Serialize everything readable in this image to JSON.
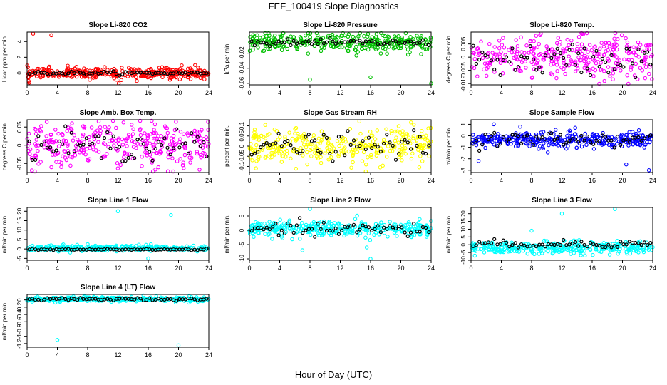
{
  "page": {
    "title": "FEF_100419  Slope Diagnostics",
    "xlabel": "Hour of Day (UTC)"
  },
  "chart_data": [
    {
      "type": "scatter",
      "title": "Slope Li-820 CO2",
      "ylabel": "Licor ppm per min.",
      "color": "#ff0000",
      "xlim": [
        0,
        24
      ],
      "xticks": [
        0,
        4,
        8,
        12,
        16,
        20,
        24
      ],
      "ylim": [
        -1.5,
        5.2
      ],
      "yticks": [
        0,
        2,
        4
      ],
      "center": 0.0,
      "spread": 0.35,
      "hourly_center": 0.0,
      "hourly_spread": 0.1,
      "outliers": [
        [
          0.8,
          5.0
        ],
        [
          3.2,
          4.8
        ],
        [
          12.1,
          -1.3
        ],
        [
          0.2,
          -1.0
        ]
      ]
    },
    {
      "type": "scatter",
      "title": "Slope Li-820 Pressure",
      "ylabel": "kPa per min.",
      "color": "#00c000",
      "xlim": [
        0,
        24
      ],
      "xticks": [
        0,
        4,
        8,
        12,
        16,
        20,
        24
      ],
      "ylim": [
        -0.062,
        0.008
      ],
      "yticks": [
        -0.06,
        -0.04,
        -0.02
      ],
      "center": -0.006,
      "spread": 0.006,
      "hourly_center": -0.006,
      "hourly_spread": 0.002,
      "outliers": [
        [
          8,
          -0.055
        ],
        [
          16,
          -0.052
        ],
        [
          24,
          -0.06
        ],
        [
          0.5,
          0.004
        ]
      ]
    },
    {
      "type": "scatter",
      "title": "Slope Li-820 Temp.",
      "ylabel": "degrees C per min.",
      "color": "#ff00ff",
      "xlim": [
        0,
        24
      ],
      "xticks": [
        0,
        4,
        8,
        12,
        16,
        20,
        24
      ],
      "ylim": [
        -0.0105,
        0.0095
      ],
      "yticks": [
        -0.01,
        -0.005,
        0.0,
        0.005
      ],
      "center": 0.0,
      "spread": 0.004,
      "hourly_center": -0.001,
      "hourly_spread": 0.003,
      "outliers": []
    },
    {
      "type": "scatter",
      "title": "Slope Amb. Box Temp.",
      "ylabel": "degrees C per min.",
      "color": "#ff00ff",
      "xlim": [
        0,
        24
      ],
      "xticks": [
        0,
        4,
        8,
        12,
        16,
        20,
        24
      ],
      "ylim": [
        -0.075,
        0.07
      ],
      "yticks": [
        -0.05,
        0.0,
        0.05
      ],
      "center": 0.0,
      "spread": 0.03,
      "hourly_center": 0.0,
      "hourly_spread": 0.02,
      "outliers": []
    },
    {
      "type": "scatter",
      "title": "Slope Gas Stream RH",
      "ylabel": "percent per min.",
      "color": "#ffff00",
      "xlim": [
        0,
        24
      ],
      "xticks": [
        0,
        4,
        8,
        12,
        16,
        20,
        24
      ],
      "ylim": [
        -0.13,
        0.13
      ],
      "yticks": [
        -0.1,
        -0.05,
        0.0,
        0.05,
        0.1
      ],
      "center": 0.0,
      "spread": 0.045,
      "hourly_center": 0.0,
      "hourly_spread": 0.03,
      "outliers": []
    },
    {
      "type": "scatter",
      "title": "Slope Sample Flow",
      "ylabel": "ml/min per min.",
      "color": "#0000ff",
      "xlim": [
        0,
        24
      ],
      "xticks": [
        0,
        4,
        8,
        12,
        16,
        20,
        24
      ],
      "ylim": [
        -3.2,
        1.4
      ],
      "yticks": [
        -3,
        -2,
        -1,
        0,
        1
      ],
      "center": -0.4,
      "spread": 0.35,
      "hourly_center": -0.3,
      "hourly_spread": 0.3,
      "outliers": [
        [
          3,
          1.0
        ],
        [
          23.5,
          -3.0
        ],
        [
          20.5,
          -2.5
        ],
        [
          1,
          -2.2
        ],
        [
          6.5,
          0.8
        ]
      ]
    },
    {
      "type": "scatter",
      "title": "Slope Line 1 Flow",
      "ylabel": "ml/min per min.",
      "color": "#00ffff",
      "xlim": [
        0,
        24
      ],
      "xticks": [
        0,
        4,
        8,
        12,
        16,
        20,
        24
      ],
      "ylim": [
        -6,
        22
      ],
      "yticks": [
        -5,
        0,
        5,
        10,
        15,
        20
      ],
      "center": 0.5,
      "spread": 0.7,
      "hourly_center": -0.3,
      "hourly_spread": 0.2,
      "outliers": [
        [
          12,
          20
        ],
        [
          19,
          18
        ],
        [
          16,
          -5
        ],
        [
          8,
          2.5
        ]
      ]
    },
    {
      "type": "scatter",
      "title": "Slope Line 2 Flow",
      "ylabel": "ml/min per min.",
      "color": "#00ffff",
      "xlim": [
        0,
        24
      ],
      "xticks": [
        0,
        4,
        8,
        12,
        16,
        20,
        24
      ],
      "ylim": [
        -10.5,
        8
      ],
      "yticks": [
        -10,
        -5,
        0,
        5
      ],
      "center": 0.5,
      "spread": 1.3,
      "hourly_center": 0.3,
      "hourly_spread": 1.2,
      "outliers": [
        [
          8,
          7.5
        ],
        [
          16,
          -10
        ],
        [
          7,
          -7
        ],
        [
          3,
          -3
        ],
        [
          15.5,
          -6
        ]
      ]
    },
    {
      "type": "scatter",
      "title": "Slope Line 3 Flow",
      "ylabel": "ml/min per min.",
      "color": "#00ffff",
      "xlim": [
        0,
        24
      ],
      "xticks": [
        0,
        4,
        8,
        12,
        16,
        20,
        24
      ],
      "ylim": [
        -10,
        24
      ],
      "yticks": [
        -10,
        -5,
        0,
        5,
        10,
        15,
        20
      ],
      "center": -2,
      "spread": 2.0,
      "hourly_center": 0.5,
      "hourly_spread": 1.2,
      "outliers": [
        [
          12,
          20
        ],
        [
          19,
          23
        ],
        [
          0.5,
          -7
        ],
        [
          8,
          9
        ]
      ]
    },
    {
      "type": "scatter",
      "title": "Slope Line 4 (LT) Flow",
      "ylabel": "ml/min per min.",
      "color": "#00ffff",
      "xlim": [
        0,
        24
      ],
      "xticks": [
        0,
        4,
        8,
        12,
        16,
        20,
        24
      ],
      "ylim": [
        -1.3,
        0.15
      ],
      "yticks": [
        -1.2,
        -1.0,
        -0.8,
        -0.6,
        -0.4,
        -0.2,
        0.0
      ],
      "center": 0.02,
      "spread": 0.03,
      "hourly_center": 0.02,
      "hourly_spread": 0.02,
      "outliers": [
        [
          4,
          -1.1
        ],
        [
          20,
          -1.25
        ]
      ]
    }
  ]
}
